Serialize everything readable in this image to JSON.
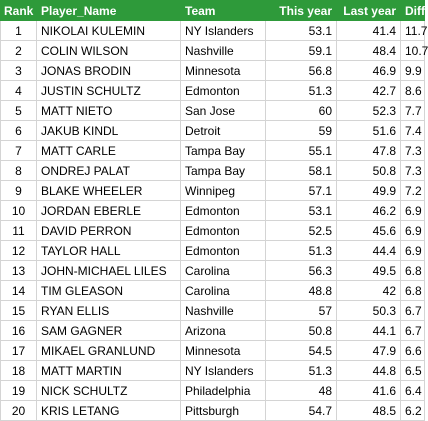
{
  "table": {
    "header": [
      "Rank",
      "Player_Name",
      "Team",
      "This year",
      "Last year",
      "Diff"
    ],
    "rows": [
      [
        1,
        "NIKOLAI KULEMIN",
        "NY Islanders",
        53.1,
        41.4,
        11.7
      ],
      [
        2,
        "COLIN WILSON",
        "Nashville",
        59.1,
        48.4,
        10.7
      ],
      [
        3,
        "JONAS BRODIN",
        "Minnesota",
        56.8,
        46.9,
        9.9
      ],
      [
        4,
        "JUSTIN SCHULTZ",
        "Edmonton",
        51.3,
        42.7,
        8.6
      ],
      [
        5,
        "MATT NIETO",
        "San Jose",
        60,
        52.3,
        7.7
      ],
      [
        6,
        "JAKUB KINDL",
        "Detroit",
        59,
        51.6,
        7.4
      ],
      [
        7,
        "MATT CARLE",
        "Tampa Bay",
        55.1,
        47.8,
        7.3
      ],
      [
        8,
        "ONDREJ PALAT",
        "Tampa Bay",
        58.1,
        50.8,
        7.3
      ],
      [
        9,
        "BLAKE WHEELER",
        "Winnipeg",
        57.1,
        49.9,
        7.2
      ],
      [
        10,
        "JORDAN EBERLE",
        "Edmonton",
        53.1,
        46.2,
        6.9
      ],
      [
        11,
        "DAVID PERRON",
        "Edmonton",
        52.5,
        45.6,
        6.9
      ],
      [
        12,
        "TAYLOR HALL",
        "Edmonton",
        51.3,
        44.4,
        6.9
      ],
      [
        13,
        "JOHN-MICHAEL LILES",
        "Carolina",
        56.3,
        49.5,
        6.8
      ],
      [
        14,
        "TIM GLEASON",
        "Carolina",
        48.8,
        42,
        6.8
      ],
      [
        15,
        "RYAN ELLIS",
        "Nashville",
        57,
        50.3,
        6.7
      ],
      [
        16,
        "SAM GAGNER",
        "Arizona",
        50.8,
        44.1,
        6.7
      ],
      [
        17,
        "MIKAEL GRANLUND",
        "Minnesota",
        54.5,
        47.9,
        6.6
      ],
      [
        18,
        "MATT MARTIN",
        "NY Islanders",
        51.3,
        44.8,
        6.5
      ],
      [
        19,
        "NICK SCHULTZ",
        "Philadelphia",
        48,
        41.6,
        6.4
      ],
      [
        20,
        "KRIS LETANG",
        "Pittsburgh",
        54.7,
        48.5,
        6.2
      ]
    ]
  }
}
